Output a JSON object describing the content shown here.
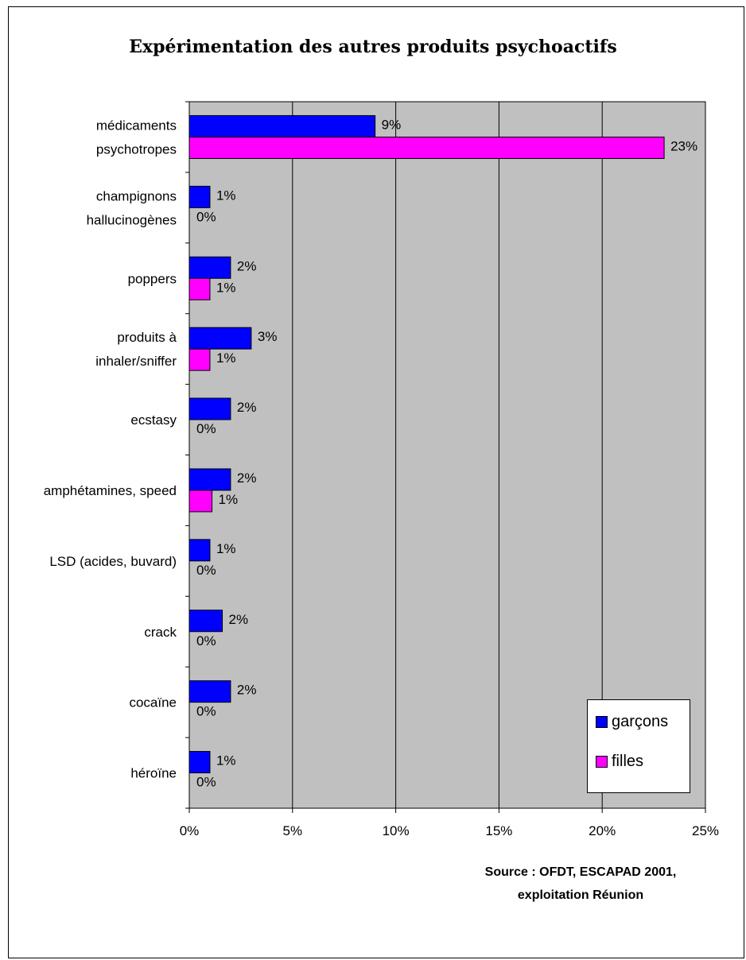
{
  "chart_data": {
    "type": "bar",
    "orientation": "horizontal",
    "title": "Expérimentation des autres produits psychoactifs",
    "categories": [
      [
        "médicaments",
        "psychotropes"
      ],
      [
        "champignons",
        "hallucinogènes"
      ],
      [
        "poppers"
      ],
      [
        "produits à",
        "inhaler/sniffer"
      ],
      [
        "ecstasy"
      ],
      [
        "amphétamines, speed"
      ],
      [
        "LSD (acides, buvard)"
      ],
      [
        "crack"
      ],
      [
        "cocaïne"
      ],
      [
        "héroïne"
      ]
    ],
    "series": [
      {
        "name": "garçons",
        "color": "#0000ff",
        "values": [
          9,
          1,
          2,
          3,
          2,
          2,
          1,
          1.6,
          2,
          1
        ],
        "labels": [
          "9%",
          "1%",
          "2%",
          "3%",
          "2%",
          "2%",
          "1%",
          "2%",
          "2%",
          "1%"
        ]
      },
      {
        "name": "filles",
        "color": "#ff00ff",
        "values": [
          23,
          0,
          1,
          1,
          0,
          1.1,
          0,
          0,
          0,
          0
        ],
        "labels": [
          "23%",
          "0%",
          "1%",
          "1%",
          "0%",
          "1%",
          "0%",
          "0%",
          "0%",
          "0%"
        ]
      }
    ],
    "xlim": [
      0,
      25
    ],
    "xticks": [
      0,
      5,
      10,
      15,
      20,
      25
    ],
    "xtick_labels": [
      "0%",
      "5%",
      "10%",
      "15%",
      "20%",
      "25%"
    ],
    "grid": true,
    "plot_background": "#c0c0c0",
    "legend_position": "bottom-right"
  },
  "source": {
    "line1": "Source : OFDT, ESCAPAD 2001,",
    "line2": "exploitation Réunion"
  },
  "legend": [
    {
      "label": "garçons",
      "color": "#0000ff"
    },
    {
      "label": "filles",
      "color": "#ff00ff"
    }
  ]
}
